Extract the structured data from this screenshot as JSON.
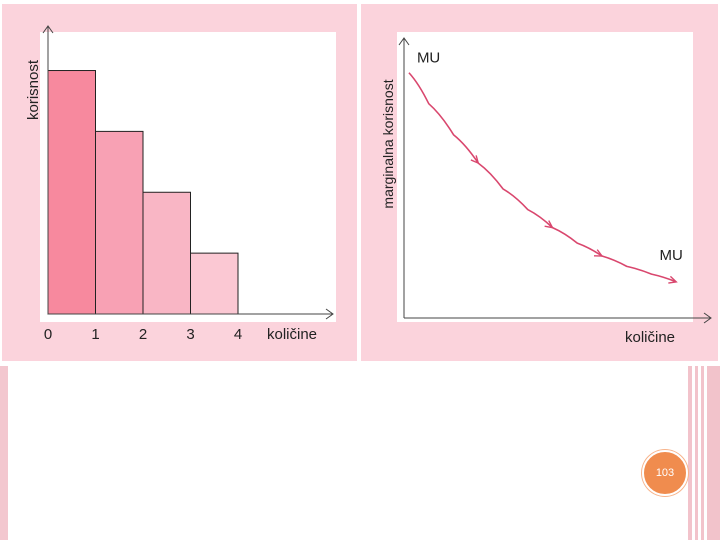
{
  "chart_data": [
    {
      "type": "bar",
      "ylabel": "korisnost",
      "xlabel": "količine",
      "x_ticks": [
        "0",
        "1",
        "2",
        "3",
        "4"
      ],
      "categories": [
        "0-1",
        "1-2",
        "2-3",
        "3-4"
      ],
      "values": [
        100,
        75,
        50,
        25
      ],
      "ylim": [
        0,
        115
      ],
      "bar_colors": [
        "#f7899e",
        "#f8a1b4",
        "#f9b6c5",
        "#fbc8d3"
      ],
      "grid": false
    },
    {
      "type": "line",
      "ylabel": "marginalna korisnost",
      "xlabel": "količine",
      "series": [
        {
          "name": "MU",
          "x": [
            0.1,
            0.5,
            1.0,
            1.5,
            2.0,
            2.5,
            3.0,
            3.5,
            4.0,
            4.5,
            5.0,
            5.5
          ],
          "y": [
            9.5,
            8.3,
            7.1,
            6.0,
            5.0,
            4.2,
            3.5,
            2.9,
            2.4,
            2.0,
            1.7,
            1.4
          ]
        }
      ],
      "start_label": "MU",
      "end_label": "MU",
      "xlim": [
        0,
        6
      ],
      "ylim": [
        0,
        11
      ],
      "line_color": "#d9476e",
      "grid": false
    }
  ],
  "footer": {
    "page_number": "103"
  },
  "colors": {
    "panel_bg": "#fbd3dc",
    "axis": "#444444",
    "badge": "#f08c4e"
  }
}
